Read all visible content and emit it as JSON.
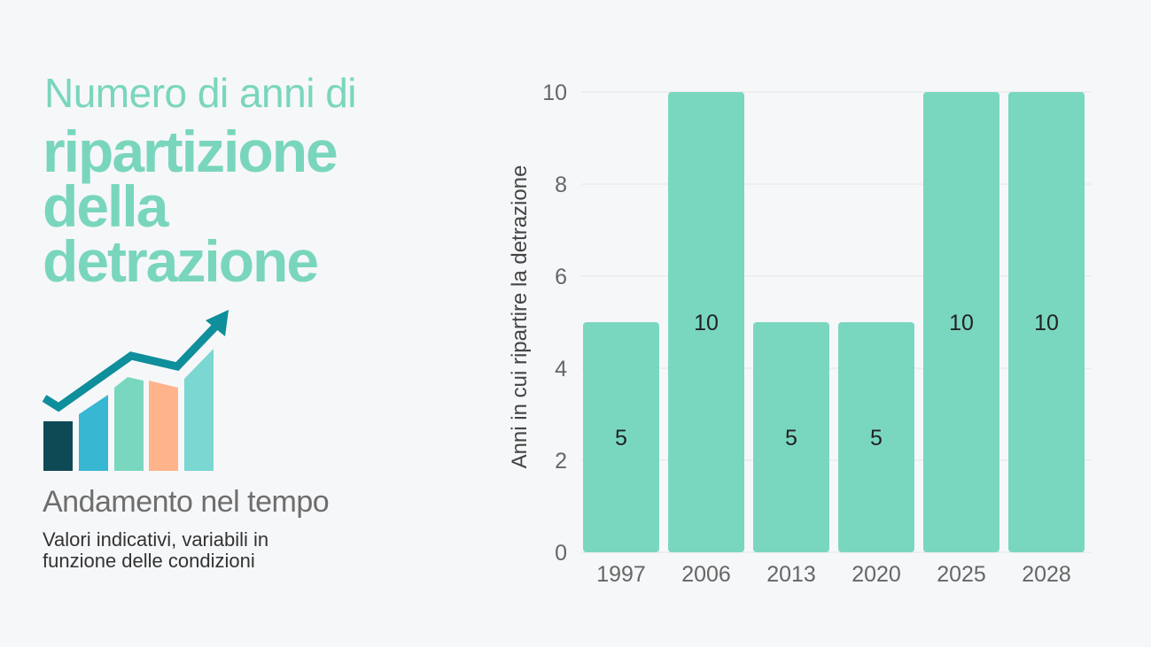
{
  "heading": {
    "line1": "Numero di anni di",
    "big_lines": [
      "ripartizione",
      "della",
      "detrazione"
    ]
  },
  "subtitle": "Andamento nel tempo",
  "note_lines": [
    "Valori indicativi, variabili in",
    "funzione delle condizioni"
  ],
  "illustration": {
    "icon": "growth-chart-icon"
  },
  "colors": {
    "accent": "#79d6bd",
    "bar": "#7ad7bf",
    "grid": "#e2e4e8",
    "tick_text": "#666666",
    "label_text": "#222222"
  },
  "chart_data": {
    "type": "bar",
    "categories": [
      "1997",
      "2006",
      "2013",
      "2020",
      "2025",
      "2028"
    ],
    "values": [
      5,
      10,
      5,
      5,
      10,
      10
    ],
    "data_labels": [
      "5",
      "10",
      "5",
      "5",
      "10",
      "10"
    ],
    "ylabel": "Anni in cui ripartire la detrazione",
    "xlabel": "",
    "ylim": [
      0,
      10
    ],
    "yticks": [
      "0",
      "2",
      "4",
      "6",
      "8",
      "10"
    ],
    "grid": true
  }
}
